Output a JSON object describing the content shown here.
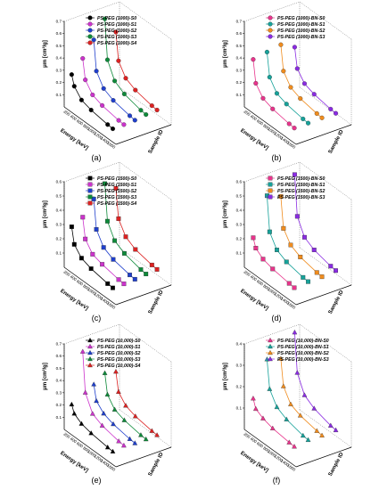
{
  "chart_data": [
    {
      "panel": "(a)",
      "type": "line3d",
      "ylabel": "μm [cm²/g]",
      "xlabel": "Energy [keV]",
      "zlabel": "Sample ID",
      "yticks": [
        0.1,
        0.2,
        0.3,
        0.4,
        0.5,
        0.6,
        0.7
      ],
      "ylim": [
        0,
        0.7
      ],
      "xticks": [
        200,
        400,
        600,
        800,
        1000,
        1200,
        1400,
        1600
      ],
      "xlim": [
        0,
        1600
      ],
      "energies": [
        59.5,
        140,
        364,
        662,
        1173,
        1332
      ],
      "series": [
        {
          "name": "PS-PEG (1000)-S0",
          "color": "#000000",
          "marker": "circle",
          "values": [
            0.26,
            0.18,
            0.11,
            0.085,
            0.064,
            0.06
          ]
        },
        {
          "name": "PS-PEG (1000)-S1",
          "color": "#cc33cc",
          "marker": "circle",
          "values": [
            0.36,
            0.2,
            0.12,
            0.09,
            0.066,
            0.062
          ]
        },
        {
          "name": "PS-PEG (1000)-S2",
          "color": "#1f3fcc",
          "marker": "circle",
          "values": [
            0.48,
            0.24,
            0.14,
            0.1,
            0.072,
            0.066
          ]
        },
        {
          "name": "PS-PEG (1000)-S3",
          "color": "#0e8a3a",
          "marker": "circle",
          "values": [
            0.62,
            0.3,
            0.17,
            0.12,
            0.085,
            0.08
          ]
        },
        {
          "name": "PS-PEG (1000)-S4",
          "color": "#dd2222",
          "marker": "circle",
          "values": [
            0.48,
            0.26,
            0.16,
            0.12,
            0.09,
            0.085
          ]
        }
      ]
    },
    {
      "panel": "(b)",
      "type": "line3d",
      "ylabel": "μm [cm²/g]",
      "xlabel": "Energy [keV]",
      "zlabel": "Sample ID",
      "yticks": [
        0.1,
        0.2,
        0.3,
        0.4,
        0.5,
        0.6,
        0.7
      ],
      "ylim": [
        0,
        0.7
      ],
      "xticks": [
        200,
        400,
        600,
        800,
        1000,
        1200,
        1400,
        1600
      ],
      "xlim": [
        0,
        1600
      ],
      "energies": [
        59.5,
        140,
        364,
        662,
        1173,
        1332
      ],
      "series": [
        {
          "name": "PS-PEG (1000)-BN-S0",
          "color": "#e8348c",
          "marker": "circle",
          "values": [
            0.38,
            0.2,
            0.12,
            0.09,
            0.066,
            0.062
          ]
        },
        {
          "name": "PS-PEG (1000)-BN-S1",
          "color": "#17a29a",
          "marker": "circle",
          "values": [
            0.4,
            0.21,
            0.12,
            0.09,
            0.066,
            0.062
          ]
        },
        {
          "name": "PS-PEG (1000)-BN-S2",
          "color": "#f08c1e",
          "marker": "circle",
          "values": [
            0.42,
            0.22,
            0.13,
            0.095,
            0.07,
            0.065
          ]
        },
        {
          "name": "PS-PEG (1000)-BN-S3",
          "color": "#8a2be2",
          "marker": "circle",
          "values": [
            0.36,
            0.2,
            0.12,
            0.09,
            0.066,
            0.062
          ]
        }
      ]
    },
    {
      "panel": "(c)",
      "type": "line3d",
      "ylabel": "μm [cm²/g]",
      "xlabel": "Energy [keV]",
      "zlabel": "Sample ID",
      "yticks": [
        0.1,
        0.2,
        0.3,
        0.4,
        0.5,
        0.6
      ],
      "ylim": [
        0,
        0.6
      ],
      "xticks": [
        200,
        400,
        600,
        800,
        1000,
        1200,
        1400,
        1600
      ],
      "xlim": [
        0,
        1600
      ],
      "energies": [
        59.5,
        140,
        364,
        662,
        1173,
        1332
      ],
      "series": [
        {
          "name": "PS-PEG (1500)-S0",
          "color": "#000000",
          "marker": "square",
          "values": [
            0.28,
            0.17,
            0.11,
            0.085,
            0.064,
            0.06
          ]
        },
        {
          "name": "PS-PEG (1500)-S1",
          "color": "#cc33cc",
          "marker": "square",
          "values": [
            0.32,
            0.18,
            0.11,
            0.088,
            0.065,
            0.061
          ]
        },
        {
          "name": "PS-PEG (1500)-S2",
          "color": "#1f3fcc",
          "marker": "square",
          "values": [
            0.42,
            0.22,
            0.13,
            0.095,
            0.07,
            0.066
          ]
        },
        {
          "name": "PS-PEG (1500)-S3",
          "color": "#0e8a3a",
          "marker": "square",
          "values": [
            0.5,
            0.25,
            0.15,
            0.11,
            0.08,
            0.075
          ]
        },
        {
          "name": "PS-PEG (1500)-S4",
          "color": "#dd2222",
          "marker": "square",
          "values": [
            0.44,
            0.24,
            0.15,
            0.11,
            0.085,
            0.08
          ]
        }
      ]
    },
    {
      "panel": "(d)",
      "type": "line3d",
      "ylabel": "μm [cm²/g]",
      "xlabel": "Energy [keV]",
      "zlabel": "Sample ID",
      "yticks": [
        0.1,
        0.2,
        0.3,
        0.4,
        0.5,
        0.6
      ],
      "ylim": [
        0,
        0.6
      ],
      "xticks": [
        200,
        400,
        600,
        800,
        1000,
        1200,
        1400,
        1600
      ],
      "xlim": [
        0,
        1600
      ],
      "energies": [
        59.5,
        140,
        364,
        662,
        1173,
        1332
      ],
      "series": [
        {
          "name": "PS-PEG (1500)-BN-S0",
          "color": "#e8348c",
          "marker": "square",
          "values": [
            0.2,
            0.14,
            0.1,
            0.08,
            0.062,
            0.058
          ]
        },
        {
          "name": "PS-PEG (1500)-BN-S1",
          "color": "#17a29a",
          "marker": "square",
          "values": [
            0.46,
            0.22,
            0.13,
            0.095,
            0.07,
            0.066
          ]
        },
        {
          "name": "PS-PEG (1500)-BN-S2",
          "color": "#f08c1e",
          "marker": "square",
          "values": [
            0.42,
            0.21,
            0.13,
            0.095,
            0.07,
            0.066
          ]
        },
        {
          "name": "PS-PEG (1500)-BN-S3",
          "color": "#8a2be2",
          "marker": "square",
          "values": [
            0.54,
            0.26,
            0.15,
            0.11,
            0.08,
            0.075
          ]
        }
      ]
    },
    {
      "panel": "(e)",
      "type": "line3d",
      "ylabel": "μm [cm²/g]",
      "xlabel": "Energy [keV]",
      "zlabel": "Sample ID",
      "yticks": [
        0.1,
        0.2,
        0.3,
        0.4,
        0.5,
        0.6,
        0.7
      ],
      "ylim": [
        0,
        0.7
      ],
      "xticks": [
        200,
        400,
        600,
        800,
        1000,
        1200,
        1400,
        1600
      ],
      "xlim": [
        0,
        1600
      ],
      "energies": [
        59.5,
        140,
        364,
        662,
        1173,
        1332
      ],
      "series": [
        {
          "name": "PS-PEG (10,000)-S0",
          "color": "#000000",
          "marker": "triangle",
          "values": [
            0.2,
            0.14,
            0.1,
            0.08,
            0.062,
            0.058
          ]
        },
        {
          "name": "PS-PEG (10,000)-S1",
          "color": "#cc33cc",
          "marker": "triangle",
          "values": [
            0.6,
            0.28,
            0.15,
            0.11,
            0.08,
            0.075
          ]
        },
        {
          "name": "PS-PEG (10,000)-S2",
          "color": "#1f3fcc",
          "marker": "triangle",
          "values": [
            0.3,
            0.18,
            0.12,
            0.09,
            0.066,
            0.062
          ]
        },
        {
          "name": "PS-PEG (10,000)-S3",
          "color": "#0e8a3a",
          "marker": "triangle",
          "values": [
            0.36,
            0.2,
            0.12,
            0.09,
            0.066,
            0.062
          ]
        },
        {
          "name": "PS-PEG (10,000)-S4",
          "color": "#dd2222",
          "marker": "triangle",
          "values": [
            0.34,
            0.19,
            0.12,
            0.09,
            0.068,
            0.064
          ]
        }
      ]
    },
    {
      "panel": "(f)",
      "type": "line3d",
      "ylabel": "μm [cm²/g]",
      "xlabel": "Energy [keV]",
      "zlabel": "Sample ID",
      "yticks": [
        0.1,
        0.2,
        0.3,
        0.4
      ],
      "ylim": [
        0,
        0.4
      ],
      "xticks": [
        200,
        400,
        600,
        800,
        1000,
        1200,
        1400,
        1600
      ],
      "xlim": [
        0,
        1600
      ],
      "energies": [
        59.5,
        140,
        364,
        662,
        1173,
        1332
      ],
      "series": [
        {
          "name": "PS-PEG (10,000)-BN-S0",
          "color": "#e8348c",
          "marker": "triangle",
          "values": [
            0.14,
            0.1,
            0.08,
            0.066,
            0.056,
            0.054
          ]
        },
        {
          "name": "PS-PEG (10,000)-BN-S1",
          "color": "#17a29a",
          "marker": "triangle",
          "values": [
            0.3,
            0.17,
            0.11,
            0.085,
            0.065,
            0.062
          ]
        },
        {
          "name": "PS-PEG (10,000)-BN-S2",
          "color": "#f08c1e",
          "marker": "triangle",
          "values": [
            0.28,
            0.16,
            0.1,
            0.08,
            0.064,
            0.06
          ]
        },
        {
          "name": "PS-PEG (10,000)-BN-S3",
          "color": "#8a2be2",
          "marker": "triangle",
          "values": [
            0.38,
            0.2,
            0.12,
            0.09,
            0.066,
            0.062
          ]
        }
      ]
    }
  ]
}
